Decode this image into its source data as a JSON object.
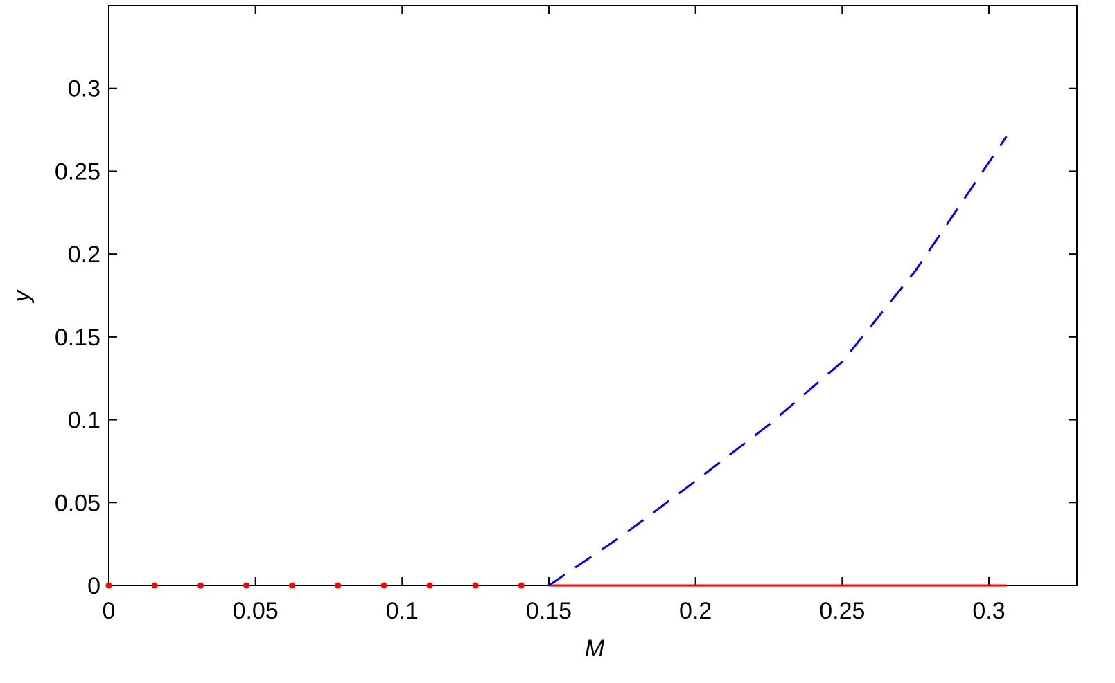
{
  "chart_data": {
    "type": "line",
    "xlabel": "M",
    "ylabel": "y",
    "xlim": [
      0,
      0.33
    ],
    "ylim": [
      0,
      0.35
    ],
    "xticks": [
      0,
      0.05,
      0.1,
      0.15,
      0.2,
      0.25,
      0.3
    ],
    "yticks": [
      0,
      0.05,
      0.1,
      0.15,
      0.2,
      0.25,
      0.3
    ],
    "grid": false,
    "series": [
      {
        "color": "#ff0000",
        "style": "dots",
        "x": [
          0,
          0.0156,
          0.0313,
          0.0469,
          0.0625,
          0.0781,
          0.0938,
          0.1094,
          0.125,
          0.1406
        ],
        "values": [
          0,
          0,
          0,
          0,
          0,
          0,
          0,
          0,
          0,
          0
        ]
      },
      {
        "color": "#ff0000",
        "style": "solid",
        "x": [
          0.15,
          0.306
        ],
        "values": [
          0,
          0
        ]
      },
      {
        "color": "#0000ff",
        "style": "dashed",
        "x": [
          0.15,
          0.175,
          0.2,
          0.225,
          0.25,
          0.275,
          0.306
        ],
        "values": [
          0,
          0.03,
          0.063,
          0.097,
          0.135,
          0.19,
          0.271
        ]
      }
    ]
  }
}
